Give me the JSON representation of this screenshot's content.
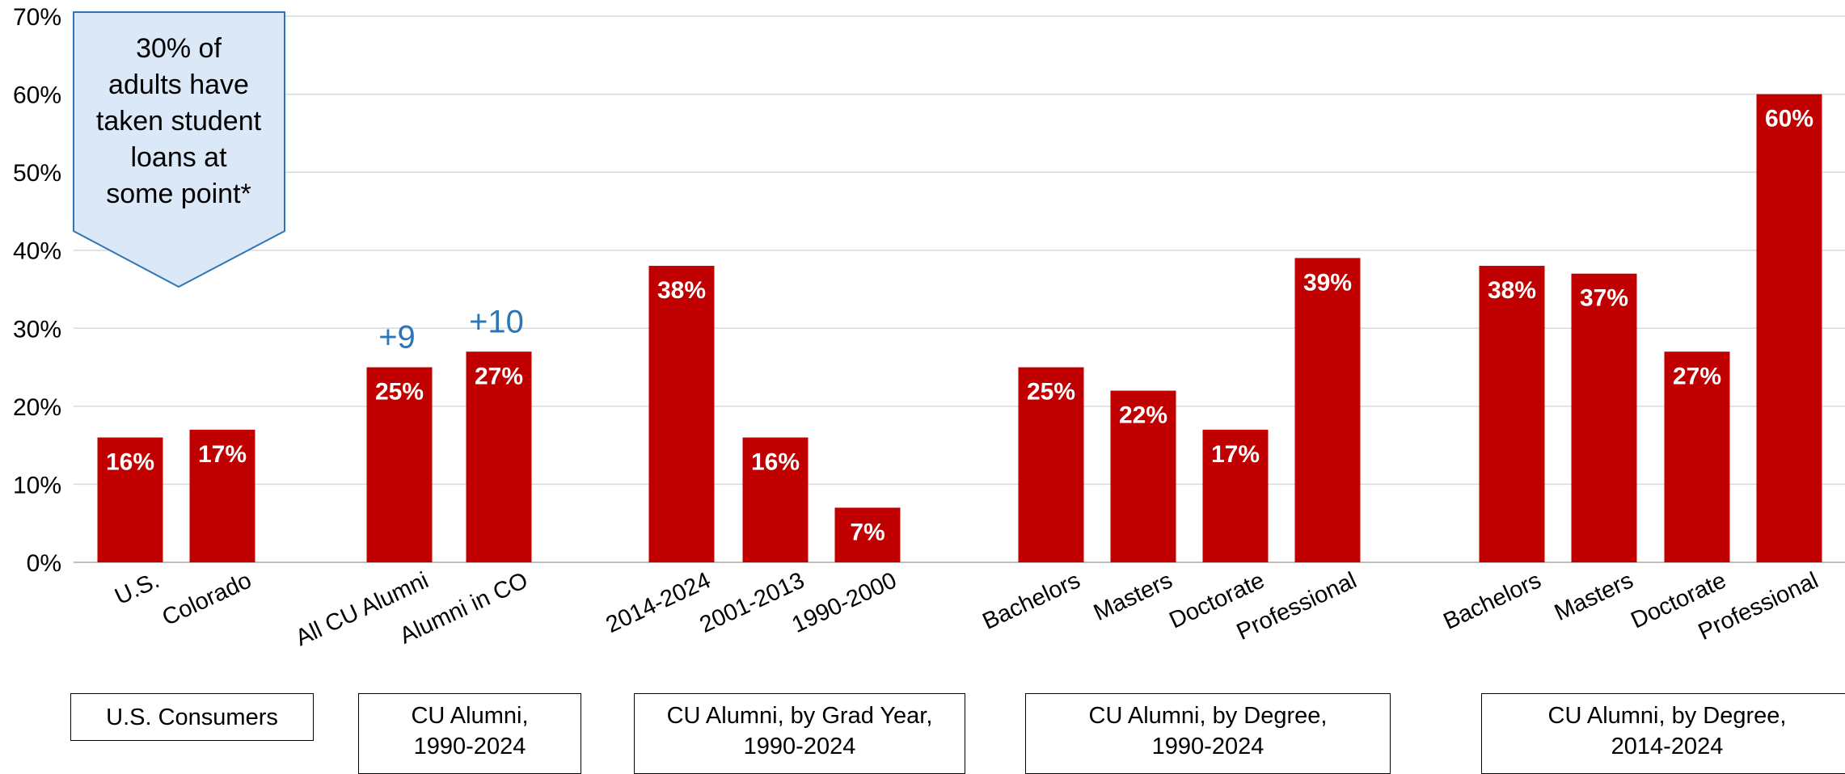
{
  "chart_data": {
    "type": "bar",
    "ylim": [
      0,
      70
    ],
    "y_ticks": [
      "0%",
      "10%",
      "20%",
      "30%",
      "40%",
      "50%",
      "60%",
      "70%"
    ],
    "grid": true,
    "bar_color": "#c00000",
    "categories": [
      "U.S.",
      "Colorado",
      "All CU Alumni",
      "Alumni in CO",
      "2014-2024",
      "2001-2013",
      "1990-2000",
      "Bachelors",
      "Masters",
      "Doctorate",
      "Professional",
      "Bachelors",
      "Masters",
      "Doctorate",
      "Professional"
    ],
    "values": [
      16,
      17,
      25,
      27,
      38,
      16,
      7,
      25,
      22,
      17,
      39,
      38,
      37,
      27,
      60
    ],
    "data_labels": [
      "16%",
      "17%",
      "25%",
      "27%",
      "38%",
      "16%",
      "7%",
      "25%",
      "22%",
      "17%",
      "39%",
      "38%",
      "37%",
      "27%",
      "60%"
    ],
    "annotations": [
      {
        "category_index": 2,
        "text": "+9",
        "color": "#2e75b6"
      },
      {
        "category_index": 3,
        "text": "+10",
        "color": "#2e75b6"
      }
    ],
    "groups": [
      {
        "label_lines": [
          "U.S. Consumers"
        ]
      },
      {
        "label_lines": [
          "CU Alumni,",
          "1990-2024"
        ]
      },
      {
        "label_lines": [
          "CU Alumni, by Grad Year,",
          "1990-2024"
        ]
      },
      {
        "label_lines": [
          "CU Alumni, by Degree,",
          "1990-2024"
        ]
      },
      {
        "label_lines": [
          "CU Alumni, by Degree,",
          "2014-2024"
        ]
      }
    ]
  },
  "callout": {
    "lines": [
      "30% of",
      "adults have",
      "taken student",
      "loans at",
      "some point*"
    ],
    "fill": "#dae8f7",
    "border": "#2e75b6"
  }
}
